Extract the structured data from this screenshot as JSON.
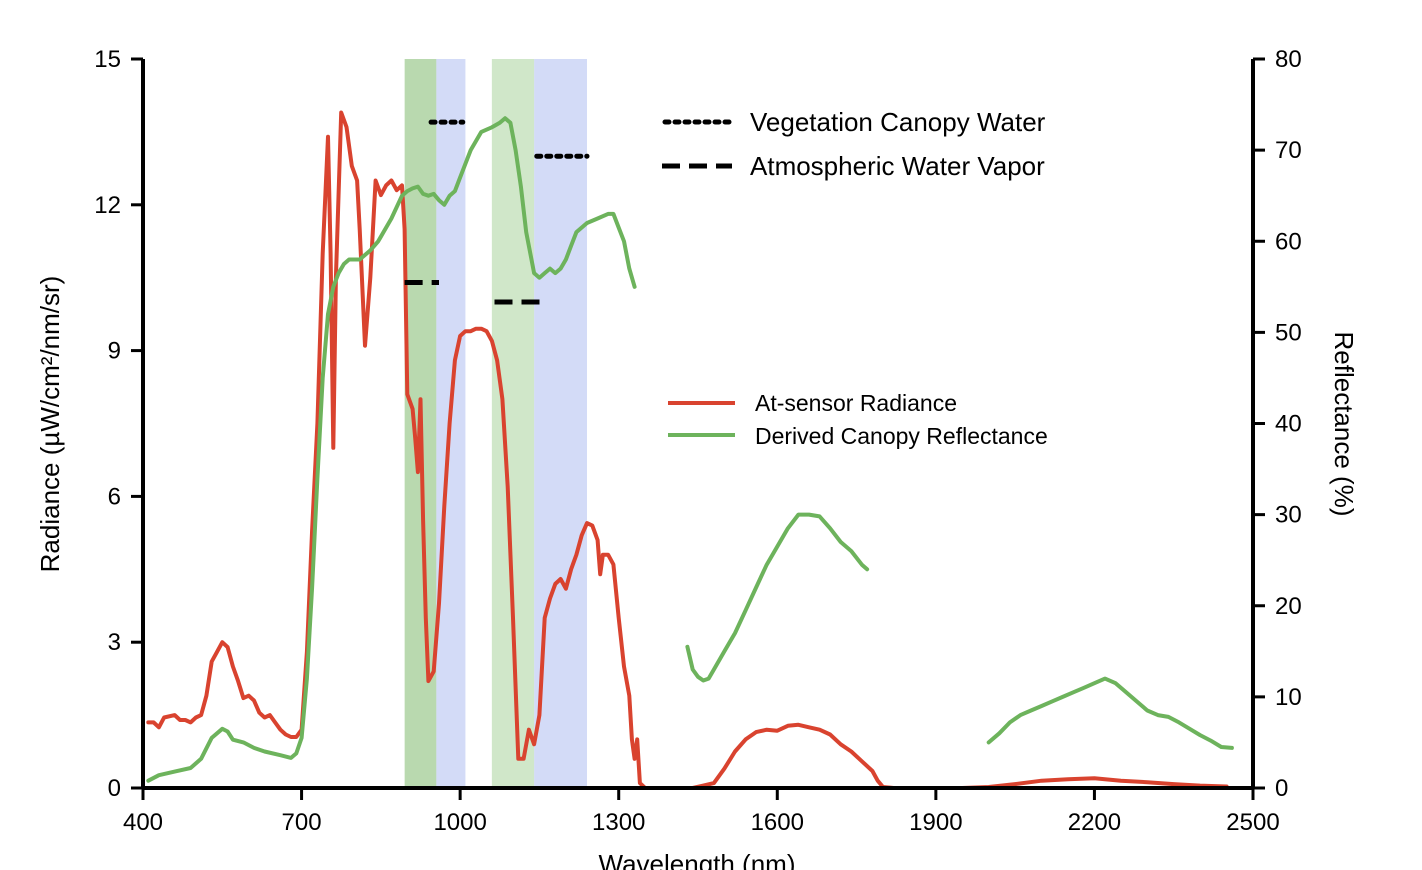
{
  "chart_data": {
    "type": "line",
    "xlabel": "Wavelength (nm)",
    "ylabel": "Radiance (µW/cm²/nm/sr)",
    "y2label": "Reflectance (%)",
    "xlim": [
      400,
      2500
    ],
    "ylim": [
      0,
      15
    ],
    "y2lim": [
      0,
      80
    ],
    "xticks": [
      "400",
      "700",
      "1000",
      "1300",
      "1600",
      "1900",
      "2200",
      "2500"
    ],
    "yticks": [
      "0",
      "3",
      "6",
      "9",
      "12",
      "15"
    ],
    "y2ticks": [
      "0",
      "10",
      "20",
      "30",
      "40",
      "50",
      "60",
      "70",
      "80"
    ],
    "shaded_bands": [
      {
        "from": 895,
        "to": 955,
        "color": "#7fba6e"
      },
      {
        "from": 955,
        "to": 1010,
        "color": "#aebdf0"
      },
      {
        "from": 1060,
        "to": 1140,
        "color": "#a9d39d"
      },
      {
        "from": 1140,
        "to": 1240,
        "color": "#aebdf0"
      }
    ],
    "markers": [
      {
        "style": "dotted",
        "x1": 945,
        "x2": 1005,
        "y": 13.7
      },
      {
        "style": "dotted",
        "x1": 1145,
        "x2": 1240,
        "y": 13.0
      },
      {
        "style": "dashed",
        "x1": 895,
        "x2": 960,
        "y": 10.4
      },
      {
        "style": "dashed",
        "x1": 1065,
        "x2": 1155,
        "y": 10.0
      }
    ],
    "legend_lines": [
      {
        "label": "Vegetation Canopy Water",
        "style": "dotted"
      },
      {
        "label": "Atmospheric Water Vapor",
        "style": "dashed"
      }
    ],
    "series": [
      {
        "name": "At-sensor Radiance",
        "axis": "left",
        "color": "#d9432f",
        "segments": [
          [
            [
              410,
              1.35
            ],
            [
              420,
              1.35
            ],
            [
              430,
              1.25
            ],
            [
              440,
              1.45
            ],
            [
              460,
              1.5
            ],
            [
              470,
              1.4
            ],
            [
              480,
              1.4
            ],
            [
              490,
              1.35
            ],
            [
              500,
              1.45
            ],
            [
              510,
              1.5
            ],
            [
              520,
              1.9
            ],
            [
              530,
              2.6
            ],
            [
              540,
              2.8
            ],
            [
              550,
              3.0
            ],
            [
              560,
              2.9
            ],
            [
              570,
              2.5
            ],
            [
              580,
              2.2
            ],
            [
              590,
              1.85
            ],
            [
              600,
              1.9
            ],
            [
              610,
              1.8
            ],
            [
              620,
              1.55
            ],
            [
              630,
              1.45
            ],
            [
              640,
              1.5
            ],
            [
              650,
              1.35
            ],
            [
              660,
              1.2
            ],
            [
              670,
              1.1
            ],
            [
              680,
              1.05
            ],
            [
              690,
              1.05
            ],
            [
              700,
              1.2
            ],
            [
              710,
              2.8
            ],
            [
              720,
              5.3
            ],
            [
              730,
              7.5
            ],
            [
              740,
              11.0
            ],
            [
              750,
              13.4
            ],
            [
              755,
              11.0
            ],
            [
              760,
              7.0
            ],
            [
              765,
              10.5
            ],
            [
              775,
              13.9
            ],
            [
              785,
              13.6
            ],
            [
              795,
              12.8
            ],
            [
              805,
              12.5
            ],
            [
              810,
              11.5
            ],
            [
              820,
              9.1
            ],
            [
              830,
              10.5
            ],
            [
              840,
              12.5
            ],
            [
              850,
              12.2
            ],
            [
              860,
              12.4
            ],
            [
              870,
              12.5
            ],
            [
              880,
              12.3
            ],
            [
              890,
              12.4
            ],
            [
              895,
              11.5
            ],
            [
              900,
              8.1
            ],
            [
              910,
              7.8
            ],
            [
              915,
              7.2
            ],
            [
              920,
              6.5
            ],
            [
              925,
              8.0
            ],
            [
              930,
              5.5
            ],
            [
              935,
              3.5
            ],
            [
              940,
              2.2
            ],
            [
              950,
              2.4
            ],
            [
              960,
              3.8
            ],
            [
              970,
              5.8
            ],
            [
              980,
              7.5
            ],
            [
              990,
              8.8
            ],
            [
              1000,
              9.3
            ],
            [
              1010,
              9.4
            ],
            [
              1020,
              9.4
            ],
            [
              1030,
              9.45
            ],
            [
              1040,
              9.45
            ],
            [
              1050,
              9.4
            ],
            [
              1060,
              9.2
            ],
            [
              1070,
              8.8
            ],
            [
              1080,
              8.0
            ],
            [
              1090,
              6.2
            ],
            [
              1100,
              3.5
            ],
            [
              1110,
              0.6
            ],
            [
              1120,
              0.6
            ],
            [
              1130,
              1.2
            ],
            [
              1140,
              0.9
            ],
            [
              1150,
              1.5
            ],
            [
              1160,
              3.5
            ],
            [
              1170,
              3.9
            ],
            [
              1180,
              4.2
            ],
            [
              1190,
              4.3
            ],
            [
              1200,
              4.1
            ],
            [
              1210,
              4.5
            ],
            [
              1220,
              4.8
            ],
            [
              1230,
              5.2
            ],
            [
              1240,
              5.45
            ],
            [
              1250,
              5.4
            ],
            [
              1260,
              5.1
            ],
            [
              1265,
              4.4
            ],
            [
              1270,
              4.8
            ],
            [
              1280,
              4.8
            ],
            [
              1290,
              4.6
            ],
            [
              1300,
              3.5
            ],
            [
              1310,
              2.5
            ],
            [
              1320,
              1.9
            ],
            [
              1325,
              1.0
            ],
            [
              1330,
              0.6
            ],
            [
              1335,
              1.0
            ],
            [
              1340,
              0.1
            ],
            [
              1350,
              0.0
            ],
            [
              1400,
              0.0
            ],
            [
              1440,
              0.0
            ],
            [
              1460,
              0.05
            ],
            [
              1480,
              0.1
            ],
            [
              1500,
              0.4
            ],
            [
              1520,
              0.75
            ],
            [
              1540,
              1.0
            ],
            [
              1560,
              1.15
            ],
            [
              1580,
              1.2
            ],
            [
              1600,
              1.18
            ],
            [
              1620,
              1.28
            ],
            [
              1640,
              1.3
            ],
            [
              1660,
              1.25
            ],
            [
              1680,
              1.2
            ],
            [
              1700,
              1.1
            ],
            [
              1720,
              0.9
            ],
            [
              1740,
              0.75
            ],
            [
              1760,
              0.55
            ],
            [
              1780,
              0.35
            ],
            [
              1790,
              0.15
            ],
            [
              1800,
              0.02
            ],
            [
              1820,
              0.0
            ],
            [
              1900,
              0.0
            ],
            [
              1950,
              0.0
            ],
            [
              2000,
              0.02
            ],
            [
              2050,
              0.08
            ],
            [
              2100,
              0.15
            ],
            [
              2150,
              0.18
            ],
            [
              2200,
              0.2
            ],
            [
              2250,
              0.15
            ],
            [
              2300,
              0.12
            ],
            [
              2350,
              0.08
            ],
            [
              2400,
              0.05
            ],
            [
              2450,
              0.03
            ]
          ]
        ]
      },
      {
        "name": "Derived Canopy Reflectance",
        "axis": "right",
        "color": "#6db35c",
        "segments": [
          [
            [
              410,
              0.8
            ],
            [
              430,
              1.4
            ],
            [
              460,
              1.8
            ],
            [
              490,
              2.2
            ],
            [
              510,
              3.2
            ],
            [
              530,
              5.5
            ],
            [
              550,
              6.5
            ],
            [
              560,
              6.2
            ],
            [
              570,
              5.3
            ],
            [
              590,
              5.0
            ],
            [
              610,
              4.4
            ],
            [
              630,
              4.0
            ],
            [
              660,
              3.6
            ],
            [
              680,
              3.3
            ],
            [
              690,
              3.8
            ],
            [
              700,
              5.5
            ],
            [
              710,
              12.0
            ],
            [
              720,
              22.0
            ],
            [
              730,
              34.0
            ],
            [
              740,
              45.0
            ],
            [
              750,
              52.0
            ],
            [
              760,
              55.0
            ],
            [
              770,
              56.5
            ],
            [
              780,
              57.5
            ],
            [
              790,
              58.0
            ],
            [
              810,
              58.0
            ],
            [
              830,
              59.0
            ],
            [
              845,
              60.0
            ],
            [
              855,
              61.0
            ],
            [
              870,
              62.5
            ],
            [
              890,
              65.0
            ],
            [
              900,
              65.5
            ],
            [
              910,
              65.8
            ],
            [
              920,
              66.0
            ],
            [
              930,
              65.2
            ],
            [
              940,
              65.0
            ],
            [
              950,
              65.2
            ],
            [
              960,
              64.5
            ],
            [
              970,
              64.0
            ],
            [
              980,
              65.0
            ],
            [
              990,
              65.5
            ],
            [
              1000,
              67.0
            ],
            [
              1010,
              68.5
            ],
            [
              1020,
              70.0
            ],
            [
              1030,
              71.0
            ],
            [
              1040,
              72.0
            ],
            [
              1060,
              72.5
            ],
            [
              1075,
              73.0
            ],
            [
              1085,
              73.5
            ],
            [
              1095,
              73.0
            ],
            [
              1105,
              70.0
            ],
            [
              1115,
              66.0
            ],
            [
              1125,
              61.0
            ],
            [
              1140,
              56.5
            ],
            [
              1150,
              56.0
            ],
            [
              1160,
              56.5
            ],
            [
              1170,
              57.0
            ],
            [
              1180,
              56.5
            ],
            [
              1190,
              57.0
            ],
            [
              1200,
              58.0
            ],
            [
              1210,
              59.5
            ],
            [
              1220,
              61.0
            ],
            [
              1240,
              62.0
            ],
            [
              1260,
              62.5
            ],
            [
              1280,
              63.0
            ],
            [
              1290,
              63.0
            ],
            [
              1300,
              61.5
            ],
            [
              1310,
              60.0
            ],
            [
              1320,
              57.0
            ],
            [
              1330,
              55.0
            ]
          ],
          [
            [
              1430,
              15.5
            ],
            [
              1440,
              13.0
            ],
            [
              1450,
              12.2
            ],
            [
              1460,
              11.8
            ],
            [
              1470,
              12.0
            ],
            [
              1480,
              13.0
            ],
            [
              1500,
              15.0
            ],
            [
              1520,
              17.0
            ],
            [
              1540,
              19.5
            ],
            [
              1560,
              22.0
            ],
            [
              1580,
              24.5
            ],
            [
              1600,
              26.5
            ],
            [
              1620,
              28.5
            ],
            [
              1640,
              30.0
            ],
            [
              1660,
              30.0
            ],
            [
              1680,
              29.8
            ],
            [
              1700,
              28.5
            ],
            [
              1720,
              27.0
            ],
            [
              1740,
              26.0
            ],
            [
              1760,
              24.5
            ],
            [
              1770,
              24.0
            ]
          ],
          [
            [
              2000,
              5.0
            ],
            [
              2020,
              6.0
            ],
            [
              2040,
              7.2
            ],
            [
              2060,
              8.0
            ],
            [
              2080,
              8.5
            ],
            [
              2100,
              9.0
            ],
            [
              2120,
              9.5
            ],
            [
              2140,
              10.0
            ],
            [
              2160,
              10.5
            ],
            [
              2180,
              11.0
            ],
            [
              2200,
              11.5
            ],
            [
              2220,
              12.0
            ],
            [
              2240,
              11.5
            ],
            [
              2260,
              10.5
            ],
            [
              2280,
              9.5
            ],
            [
              2300,
              8.5
            ],
            [
              2320,
              8.0
            ],
            [
              2340,
              7.8
            ],
            [
              2360,
              7.2
            ],
            [
              2380,
              6.5
            ],
            [
              2400,
              5.8
            ],
            [
              2420,
              5.2
            ],
            [
              2440,
              4.5
            ],
            [
              2460,
              4.4
            ]
          ]
        ]
      }
    ]
  }
}
